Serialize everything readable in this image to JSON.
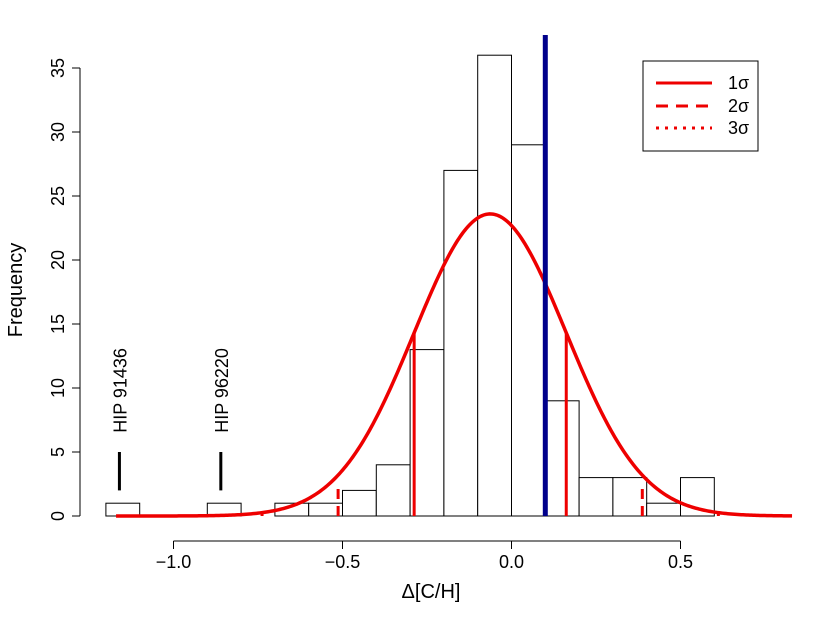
{
  "chart_data": {
    "type": "bar",
    "xlabel": "Δ[C/H]",
    "ylabel": "Frequency",
    "xlim": [
      -1.22,
      0.83
    ],
    "ylim": [
      0,
      37
    ],
    "x_ticks": [
      -1.0,
      -0.5,
      0.0,
      0.5
    ],
    "x_tick_labels": [
      "−1.0",
      "−0.5",
      "0.0",
      "0.5"
    ],
    "y_ticks": [
      0,
      5,
      10,
      15,
      20,
      25,
      30,
      35
    ],
    "y_tick_labels": [
      "0",
      "5",
      "10",
      "15",
      "20",
      "25",
      "30",
      "35"
    ],
    "bins": [
      {
        "x0": -1.2,
        "x1": -1.1,
        "count": 1
      },
      {
        "x0": -1.1,
        "x1": -1.0,
        "count": 0
      },
      {
        "x0": -1.0,
        "x1": -0.9,
        "count": 0
      },
      {
        "x0": -0.9,
        "x1": -0.8,
        "count": 1
      },
      {
        "x0": -0.8,
        "x1": -0.7,
        "count": 0
      },
      {
        "x0": -0.7,
        "x1": -0.6,
        "count": 1
      },
      {
        "x0": -0.6,
        "x1": -0.5,
        "count": 1
      },
      {
        "x0": -0.5,
        "x1": -0.4,
        "count": 2
      },
      {
        "x0": -0.4,
        "x1": -0.3,
        "count": 4
      },
      {
        "x0": -0.3,
        "x1": -0.2,
        "count": 13
      },
      {
        "x0": -0.2,
        "x1": -0.1,
        "count": 27
      },
      {
        "x0": -0.1,
        "x1": 0.0,
        "count": 36
      },
      {
        "x0": 0.0,
        "x1": 0.1,
        "count": 29
      },
      {
        "x0": 0.1,
        "x1": 0.2,
        "count": 9
      },
      {
        "x0": 0.2,
        "x1": 0.3,
        "count": 3
      },
      {
        "x0": 0.3,
        "x1": 0.4,
        "count": 3
      },
      {
        "x0": 0.4,
        "x1": 0.5,
        "count": 1
      },
      {
        "x0": 0.5,
        "x1": 0.6,
        "count": 3
      }
    ],
    "gaussian_fit": {
      "mean": -0.063,
      "sigma": 0.225,
      "peak": 23.6,
      "x_range": [
        -1.17,
        0.83
      ],
      "color": "#ee0000"
    },
    "sigma_lines": [
      {
        "x": -0.288,
        "y": 14.3,
        "style": "solid"
      },
      {
        "x": 0.162,
        "y": 14.3,
        "style": "solid"
      },
      {
        "x": -0.513,
        "y": 2.6,
        "style": "dashed"
      },
      {
        "x": 0.387,
        "y": 2.6,
        "style": "dashed"
      },
      {
        "x": -0.738,
        "y": 0.25,
        "style": "dotted"
      },
      {
        "x": 0.612,
        "y": 0.25,
        "style": "dotted"
      }
    ],
    "vertical_line": {
      "x": 0.1,
      "color": "#00008b"
    },
    "annotations": [
      {
        "text": "HIP 91436",
        "x": -1.16,
        "y_line": [
          2,
          5
        ],
        "y_text": 6.5
      },
      {
        "text": "HIP 96220",
        "x": -0.86,
        "y_line": [
          2,
          5
        ],
        "y_text": 6.5
      }
    ],
    "legend": {
      "position": "top-right",
      "entries": [
        {
          "label": "1σ",
          "style": "solid",
          "color": "#ee0000"
        },
        {
          "label": "2σ",
          "style": "dashed",
          "color": "#ee0000"
        },
        {
          "label": "3σ",
          "style": "dotted",
          "color": "#ee0000"
        }
      ]
    },
    "grid": false
  }
}
